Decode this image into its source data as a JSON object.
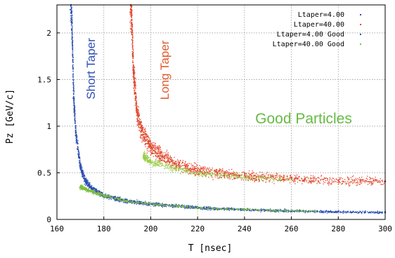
{
  "chart_data": {
    "type": "scatter",
    "xlabel": "T [nsec]",
    "ylabel": "Pz [GeV/c]",
    "xlim": [
      160,
      300
    ],
    "ylim": [
      0,
      2.3
    ],
    "x_ticks": [
      "160",
      "180",
      "200",
      "220",
      "240",
      "260",
      "280",
      "300"
    ],
    "y_ticks": [
      "0",
      "0.5",
      "1",
      "1.5",
      "2"
    ],
    "grid": true,
    "legend_position": "top-right",
    "legend": [
      {
        "label": "Ltaper=4.00",
        "color": "#2a4db0"
      },
      {
        "label": "Ltaper=40.00",
        "color": "#e0452a"
      },
      {
        "label": "Ltaper=4.00  Good",
        "color": "#2a4db0"
      },
      {
        "label": "Ltaper=40.00  Good",
        "color": "#7fbf3f"
      }
    ],
    "annotations": [
      {
        "text": "Short Taper",
        "color": "#2f4fb3"
      },
      {
        "text": "Long Taper",
        "color": "#e05a2e"
      },
      {
        "text": "Good Particles",
        "color": "#66bb44"
      }
    ],
    "series": [
      {
        "color": "#2a4db0",
        "x": [
          166.0,
          167.0,
          168.0,
          170.0,
          172.0,
          175.0,
          180.0,
          190.0,
          200.0,
          220.0,
          240.0,
          260.0,
          280.0,
          300.0
        ],
        "y": [
          2.3,
          1.3,
          0.9,
          0.55,
          0.42,
          0.33,
          0.26,
          0.2,
          0.17,
          0.13,
          0.11,
          0.095,
          0.085,
          0.08
        ]
      },
      {
        "color": "#e0452a",
        "x": [
          191.5,
          192.5,
          194.0,
          196.0,
          200.0,
          205.0,
          210.0,
          220.0,
          240.0,
          260.0,
          280.0,
          300.0
        ],
        "y": [
          2.3,
          1.6,
          1.15,
          0.95,
          0.78,
          0.68,
          0.6,
          0.53,
          0.47,
          0.44,
          0.42,
          0.41
        ]
      },
      {
        "color": "#7fbf3f",
        "x": [
          170.0,
          175.0,
          180.0,
          190.0,
          200.0,
          220.0,
          240.0,
          260.0,
          270.0
        ],
        "y": [
          0.35,
          0.3,
          0.26,
          0.2,
          0.17,
          0.13,
          0.11,
          0.1,
          0.095
        ]
      },
      {
        "color": "#9acd4a",
        "x": [
          197.0,
          200.0,
          210.0,
          220.0,
          240.0,
          260.0
        ],
        "y": [
          0.68,
          0.62,
          0.55,
          0.5,
          0.46,
          0.43
        ]
      }
    ]
  }
}
